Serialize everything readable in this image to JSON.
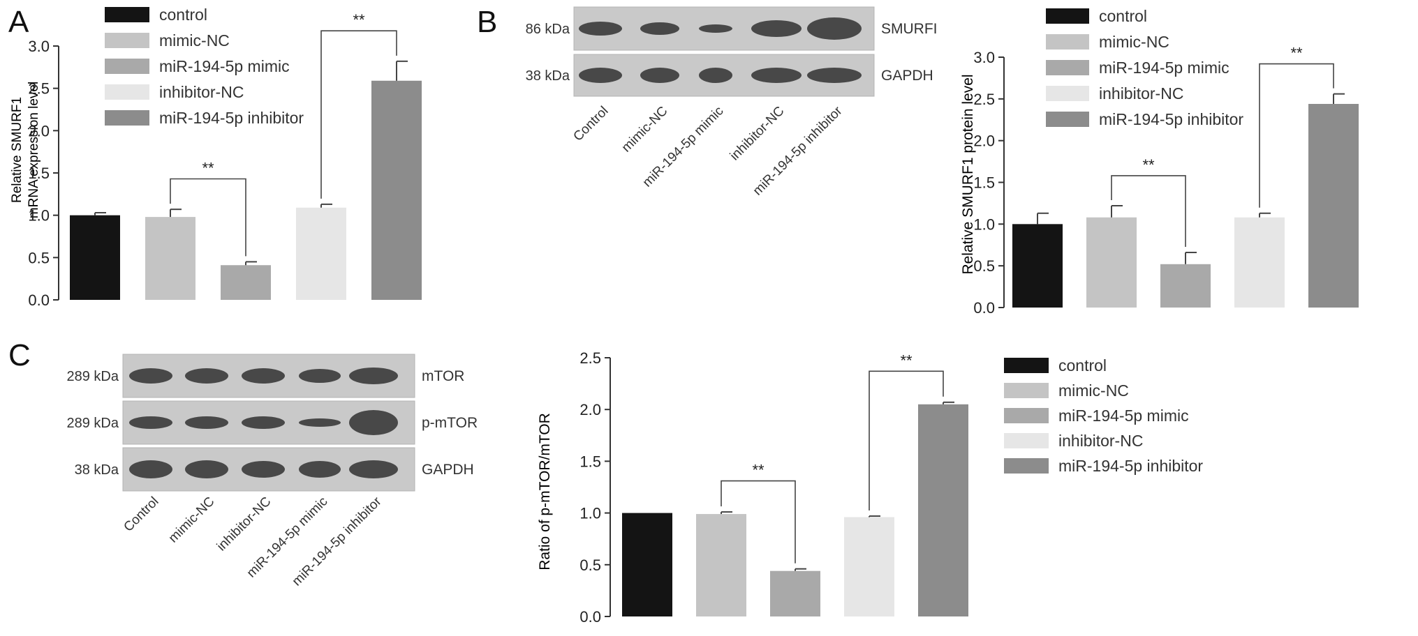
{
  "panels": {
    "A": {
      "letter": "A",
      "legend": [
        "control",
        "mimic-NC",
        "miR-194-5p mimic",
        "inhibitor-NC",
        "miR-194-5p inhibitor"
      ],
      "ylabel_line1": "Relative SMURF1",
      "ylabel_line2": "mRNA expression level"
    },
    "B": {
      "letter": "B",
      "blot_rows": [
        {
          "mw": "86 kDa",
          "protein": "SMURFI"
        },
        {
          "mw": "38 kDa",
          "protein": "GAPDH"
        }
      ],
      "lanes": [
        "Control",
        "mimic-NC",
        "miR-194-5p mimic",
        "inhibitor-NC",
        "miR-194-5p inhibitor"
      ],
      "legend": [
        "control",
        "mimic-NC",
        "miR-194-5p mimic",
        "inhibitor-NC",
        "miR-194-5p inhibitor"
      ],
      "ylabel": "Relative SMURF1 protein level"
    },
    "C": {
      "letter": "C",
      "blot_rows": [
        {
          "mw": "289 kDa",
          "protein": "mTOR"
        },
        {
          "mw": "289 kDa",
          "protein": "p-mTOR"
        },
        {
          "mw": "38 kDa",
          "protein": "GAPDH"
        }
      ],
      "lanes": [
        "Control",
        "mimic-NC",
        "inhibitor-NC",
        "miR-194-5p mimic",
        "miR-194-5p inhibitor"
      ],
      "legend": [
        "control",
        "mimic-NC",
        "miR-194-5p mimic",
        "inhibitor-NC",
        "miR-194-5p inhibitor"
      ],
      "ylabel": "Ratio of p-mTOR/mTOR"
    }
  },
  "colors": {
    "control": "#141414",
    "mimic-NC": "#c4c4c4",
    "miR-194-5p mimic": "#a9a9a9",
    "inhibitor-NC": "#e6e6e6",
    "miR-194-5p inhibitor": "#8c8c8c"
  },
  "significance_label": "**",
  "chart_data": [
    {
      "panel": "A",
      "type": "bar",
      "categories": [
        "control",
        "mimic-NC",
        "miR-194-5p mimic",
        "inhibitor-NC",
        "miR-194-5p inhibitor"
      ],
      "values": [
        1.0,
        0.98,
        0.41,
        1.09,
        2.59
      ],
      "errors": [
        0.03,
        0.09,
        0.04,
        0.04,
        0.23
      ],
      "ylabel": "Relative SMURF1 mRNA expression level",
      "ylim": [
        0,
        3.0
      ],
      "yticks": [
        0.0,
        0.5,
        1.0,
        1.5,
        2.0,
        2.5,
        3.0
      ],
      "legend": "top-left",
      "significance": [
        {
          "from": 1,
          "to": 2,
          "label": "**"
        },
        {
          "from": 3,
          "to": 4,
          "label": "**"
        }
      ]
    },
    {
      "panel": "B",
      "type": "bar",
      "categories": [
        "control",
        "mimic-NC",
        "miR-194-5p mimic",
        "inhibitor-NC",
        "miR-194-5p inhibitor"
      ],
      "values": [
        1.0,
        1.08,
        0.52,
        1.08,
        2.44
      ],
      "errors": [
        0.13,
        0.14,
        0.14,
        0.05,
        0.12
      ],
      "ylabel": "Relative SMURF1 protein level",
      "ylim": [
        0,
        3.0
      ],
      "yticks": [
        0.0,
        0.5,
        1.0,
        1.5,
        2.0,
        2.5,
        3.0
      ],
      "legend": "top-left",
      "significance": [
        {
          "from": 1,
          "to": 2,
          "label": "**"
        },
        {
          "from": 3,
          "to": 4,
          "label": "**"
        }
      ]
    },
    {
      "panel": "C",
      "type": "bar",
      "categories": [
        "control",
        "mimic-NC",
        "miR-194-5p mimic",
        "inhibitor-NC",
        "miR-194-5p inhibitor"
      ],
      "values": [
        1.0,
        0.99,
        0.44,
        0.96,
        2.05
      ],
      "errors": [
        0.0,
        0.02,
        0.02,
        0.01,
        0.02
      ],
      "ylabel": "Ratio of p-mTOR/mTOR",
      "ylim": [
        0,
        2.5
      ],
      "yticks": [
        0.0,
        0.5,
        1.0,
        1.5,
        2.0,
        2.5
      ],
      "legend": "right",
      "significance": [
        {
          "from": 1,
          "to": 2,
          "label": "**"
        },
        {
          "from": 3,
          "to": 4,
          "label": "**"
        }
      ]
    }
  ]
}
